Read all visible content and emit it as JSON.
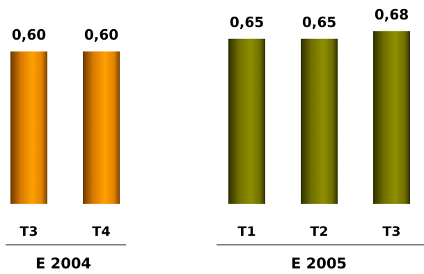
{
  "chart_data": {
    "type": "bar",
    "groups": [
      {
        "label": "E 2004",
        "color": "#F39200",
        "bars": [
          {
            "category": "T3",
            "value": 0.6,
            "label": "0,60"
          },
          {
            "category": "T4",
            "value": 0.6,
            "label": "0,60"
          }
        ]
      },
      {
        "label": "E 2005",
        "color": "#7F7F00",
        "bars": [
          {
            "category": "T1",
            "value": 0.65,
            "label": "0,65"
          },
          {
            "category": "T2",
            "value": 0.65,
            "label": "0,65"
          },
          {
            "category": "T3",
            "value": 0.68,
            "label": "0,68"
          }
        ]
      }
    ],
    "grid": false,
    "legend": "none"
  }
}
